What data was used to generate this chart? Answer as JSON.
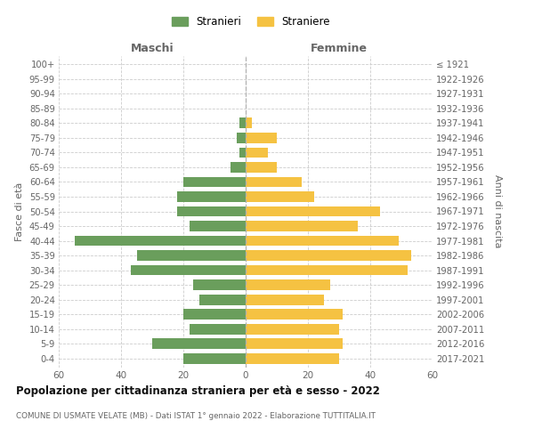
{
  "age_groups_bottom_to_top": [
    "0-4",
    "5-9",
    "10-14",
    "15-19",
    "20-24",
    "25-29",
    "30-34",
    "35-39",
    "40-44",
    "45-49",
    "50-54",
    "55-59",
    "60-64",
    "65-69",
    "70-74",
    "75-79",
    "80-84",
    "85-89",
    "90-94",
    "95-99",
    "100+"
  ],
  "birth_years_bottom_to_top": [
    "2017-2021",
    "2012-2016",
    "2007-2011",
    "2002-2006",
    "1997-2001",
    "1992-1996",
    "1987-1991",
    "1982-1986",
    "1977-1981",
    "1972-1976",
    "1967-1971",
    "1962-1966",
    "1957-1961",
    "1952-1956",
    "1947-1951",
    "1942-1946",
    "1937-1941",
    "1932-1936",
    "1927-1931",
    "1922-1926",
    "≤ 1921"
  ],
  "maschi_bottom_to_top": [
    20,
    30,
    18,
    20,
    15,
    17,
    37,
    35,
    55,
    18,
    22,
    22,
    20,
    5,
    2,
    3,
    2,
    0,
    0,
    0,
    0
  ],
  "femmine_bottom_to_top": [
    30,
    31,
    30,
    31,
    25,
    27,
    52,
    53,
    49,
    36,
    43,
    22,
    18,
    10,
    7,
    10,
    2,
    0,
    0,
    0,
    0
  ],
  "maschi_color": "#6a9e5c",
  "femmine_color": "#f5c242",
  "title": "Popolazione per cittadinanza straniera per età e sesso - 2022",
  "subtitle": "COMUNE DI USMATE VELATE (MB) - Dati ISTAT 1° gennaio 2022 - Elaborazione TUTTITALIA.IT",
  "legend_maschi": "Stranieri",
  "legend_femmine": "Straniere",
  "header_left": "Maschi",
  "header_right": "Femmine",
  "ylabel_left": "Fasce di età",
  "ylabel_right": "Anni di nascita",
  "xlim": 60,
  "background_color": "#ffffff",
  "grid_color": "#cccccc",
  "text_color": "#666666",
  "title_color": "#111111"
}
